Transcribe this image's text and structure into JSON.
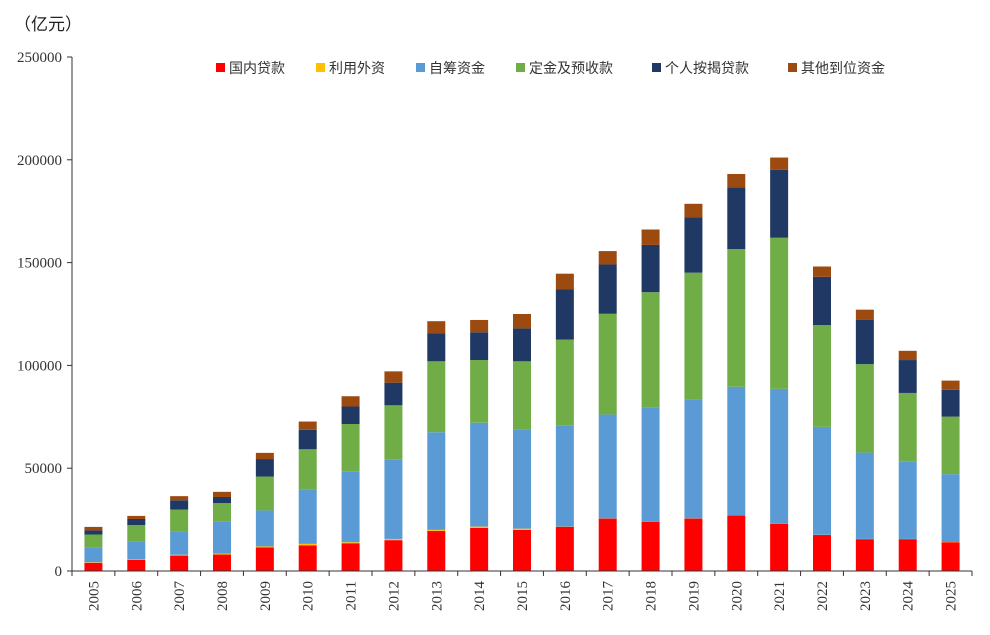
{
  "chart_data": {
    "type": "bar",
    "stacked": true,
    "title": "",
    "unit_label": "（亿元）",
    "xlabel": "",
    "ylabel": "",
    "ylim": [
      0,
      250000
    ],
    "yticks": [
      0,
      50000,
      100000,
      150000,
      200000,
      250000
    ],
    "ytick_labels": [
      "0",
      "50000",
      "100000",
      "150000",
      "200000",
      "250000"
    ],
    "legend_position": "top-right",
    "categories": [
      "2005",
      "2006",
      "2007",
      "2008",
      "2009",
      "2010",
      "2011",
      "2012",
      "2013",
      "2014",
      "2015",
      "2016",
      "2017",
      "2018",
      "2019",
      "2020",
      "2021",
      "2022",
      "2023",
      "2024",
      "2025"
    ],
    "series": [
      {
        "name": "国内贷款",
        "color": "#ff0000",
        "values": [
          4000,
          5500,
          7500,
          8000,
          11500,
          12500,
          13500,
          15000,
          19500,
          21000,
          20000,
          21500,
          25500,
          24000,
          25500,
          27000,
          23000,
          17500,
          15500,
          15500,
          14000
        ]
      },
      {
        "name": "利用外资",
        "color": "#ffc000",
        "values": [
          250,
          300,
          400,
          500,
          450,
          700,
          500,
          600,
          500,
          600,
          600,
          100,
          100,
          100,
          100,
          100,
          100,
          100,
          100,
          100,
          100
        ]
      },
      {
        "name": "自筹资金",
        "color": "#5b9bd5",
        "values": [
          7000,
          8500,
          11500,
          15500,
          17500,
          26500,
          34500,
          38500,
          47500,
          50500,
          48400,
          49000,
          50500,
          55500,
          58000,
          62500,
          65500,
          52500,
          42000,
          37500,
          33000
        ]
      },
      {
        "name": "定金及预收款",
        "color": "#70ad47",
        "values": [
          6500,
          8000,
          10500,
          9000,
          16500,
          19500,
          23000,
          26500,
          34500,
          30500,
          33000,
          42000,
          49000,
          56000,
          61500,
          67000,
          73500,
          49500,
          43000,
          33500,
          28000
        ]
      },
      {
        "name": "个人按揭贷款",
        "color": "#203864",
        "values": [
          2000,
          3000,
          4500,
          3000,
          8500,
          9500,
          8500,
          11000,
          13500,
          13500,
          16000,
          24500,
          24000,
          23000,
          27000,
          30000,
          33000,
          23500,
          21500,
          16000,
          13000
        ]
      },
      {
        "name": "其他到位资金",
        "color": "#9c4a0f",
        "values": [
          1700,
          1500,
          2000,
          2500,
          3000,
          4000,
          5000,
          5500,
          6000,
          6000,
          7000,
          7500,
          6500,
          7500,
          6500,
          6500,
          6000,
          5000,
          5000,
          4500,
          4500
        ]
      }
    ]
  }
}
